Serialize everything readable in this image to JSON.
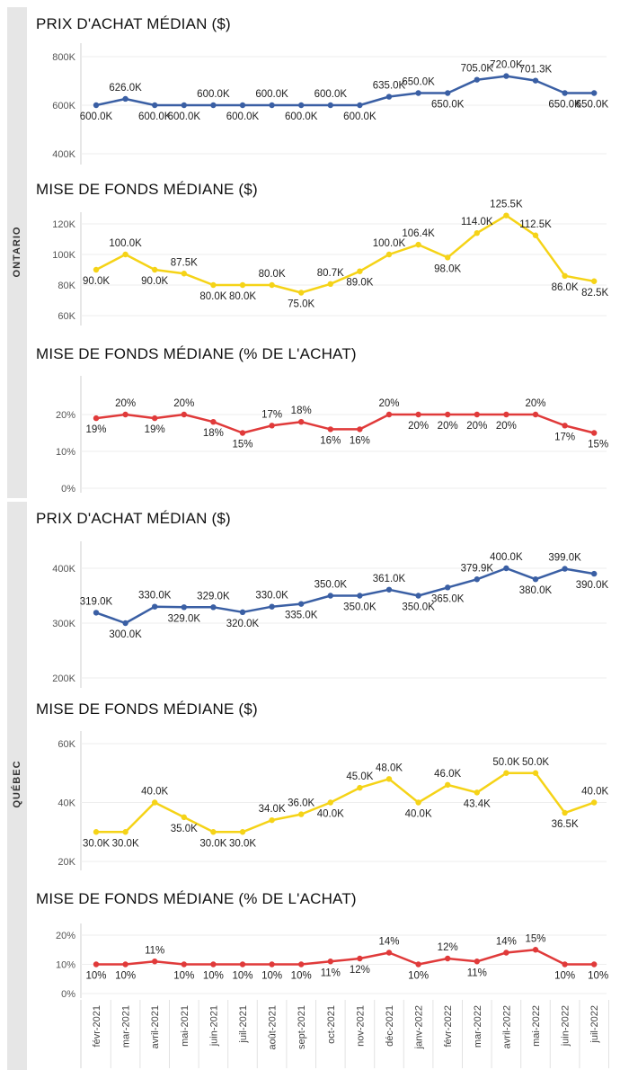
{
  "regions": [
    {
      "label": "ONTARIO"
    },
    {
      "label": "QUÉBEC"
    }
  ],
  "months": [
    "févr-2021",
    "mar-2021",
    "avril-2021",
    "mai-2021",
    "juin-2021",
    "juil-2021",
    "août-2021",
    "sept-2021",
    "oct-2021",
    "nov-2021",
    "déc-2021",
    "janv-2022",
    "févr-2022",
    "mar-2022",
    "avril-2022",
    "mai-2022",
    "juin-2022",
    "juil-2022"
  ],
  "colors": {
    "price": "#3a5fa4",
    "down": "#f5d317",
    "pct": "#e03a3a"
  },
  "chart_data": [
    {
      "type": "line",
      "region": "ONTARIO",
      "title": "PRIX D'ACHAT MÉDIAN ($)",
      "yticks": [
        "400K",
        "600K",
        "800K"
      ],
      "ylim": [
        400,
        800
      ],
      "color": "price",
      "values": [
        600,
        626,
        600,
        600,
        600,
        600,
        600,
        600,
        600,
        600,
        635,
        650,
        650,
        705,
        720,
        701.3,
        650,
        650
      ],
      "labels": [
        "600.0K",
        "626.0K",
        "600.0K",
        "600.0K",
        "600.0K",
        "600.0K",
        "600.0K",
        "600.0K",
        "600.0K",
        "600.0K",
        "635.0K",
        "650.0K",
        "650.0K",
        "705.0K",
        "720.0K",
        "701.3K",
        "650.0K",
        "650.0K"
      ],
      "label_pos": [
        "",
        "a",
        "b",
        "b",
        "a",
        "b",
        "a",
        "b",
        "a",
        "b",
        "a",
        "a",
        "b",
        "a",
        "a",
        "a",
        "b",
        "b"
      ]
    },
    {
      "type": "line",
      "region": "ONTARIO",
      "title": "MISE DE FONDS MÉDIANE ($)",
      "yticks": [
        "60K",
        "80K",
        "100K",
        "120K"
      ],
      "ylim": [
        60,
        125
      ],
      "color": "down",
      "values": [
        90,
        100,
        90,
        87.5,
        80,
        80,
        80,
        75,
        80.7,
        89,
        100,
        106.4,
        98,
        114,
        125.5,
        112.5,
        86,
        82.5
      ],
      "labels": [
        "90.0K",
        "100.0K",
        "90.0K",
        "87.5K",
        "80.0K",
        "80.0K",
        "80.0K",
        "75.0K",
        "80.7K",
        "89.0K",
        "100.0K",
        "106.4K",
        "98.0K",
        "114.0K",
        "125.5K",
        "112.5K",
        "86.0K",
        "82.5K"
      ],
      "label_pos": [
        "b",
        "a",
        "b",
        "a",
        "b",
        "b",
        "a",
        "b",
        "a",
        "b",
        "a",
        "a",
        "b",
        "a",
        "a",
        "a",
        "b",
        "b"
      ]
    },
    {
      "type": "line",
      "region": "ONTARIO",
      "title": "MISE DE FONDS MÉDIANE (% DE L'ACHAT)",
      "yticks": [
        "0%",
        "10%",
        "20%"
      ],
      "ylim": [
        0,
        28
      ],
      "color": "pct",
      "values": [
        19,
        20,
        19,
        20,
        18,
        15,
        17,
        18,
        16,
        16,
        20,
        20,
        20,
        20,
        20,
        20,
        17,
        15
      ],
      "labels": [
        "19%",
        "20%",
        "19%",
        "20%",
        "18%",
        "15%",
        "17%",
        "18%",
        "16%",
        "16%",
        "20%",
        "20%",
        "20%",
        "20%",
        "20%",
        "20%",
        "17%",
        "15%"
      ],
      "label_pos": [
        "b",
        "a",
        "b",
        "a",
        "b",
        "b",
        "a",
        "a",
        "b",
        "b",
        "a",
        "b",
        "b",
        "b",
        "b",
        "a",
        "b",
        "b"
      ]
    },
    {
      "type": "line",
      "region": "QUÉBEC",
      "title": "PRIX D'ACHAT MÉDIAN ($)",
      "yticks": [
        "200K",
        "300K",
        "400K"
      ],
      "ylim": [
        200,
        420
      ],
      "color": "price",
      "values": [
        319,
        300,
        330,
        329,
        329,
        320,
        330,
        335,
        350,
        350,
        361,
        350,
        365,
        379.9,
        400,
        380,
        399,
        390
      ],
      "labels": [
        "319.0K",
        "300.0K",
        "330.0K",
        "329.0K",
        "329.0K",
        "320.0K",
        "330.0K",
        "335.0K",
        "350.0K",
        "350.0K",
        "361.0K",
        "350.0K",
        "365.0K",
        "379.9K",
        "400.0K",
        "380.0K",
        "399.0K",
        "390.0K"
      ],
      "label_pos": [
        "a",
        "b",
        "a",
        "b",
        "a",
        "b",
        "a",
        "b",
        "a",
        "b",
        "a",
        "b",
        "b",
        "a",
        "a",
        "b",
        "a",
        "b"
      ]
    },
    {
      "type": "line",
      "region": "QUÉBEC",
      "title": "MISE DE FONDS MÉDIANE ($)",
      "yticks": [
        "20K",
        "40K",
        "60K"
      ],
      "ylim": [
        20,
        62
      ],
      "color": "down",
      "values": [
        30,
        30,
        40,
        35,
        30,
        30,
        34,
        36,
        40,
        45,
        48,
        40,
        46,
        43.4,
        50,
        50,
        36.5,
        40
      ],
      "labels": [
        "30.0K",
        "30.0K",
        "40.0K",
        "35.0K",
        "30.0K",
        "30.0K",
        "34.0K",
        "36.0K",
        "40.0K",
        "45.0K",
        "48.0K",
        "40.0K",
        "46.0K",
        "43.4K",
        "50.0K",
        "50.0K",
        "36.5K",
        "40.0K"
      ],
      "label_pos": [
        "b",
        "b",
        "a",
        "b",
        "b",
        "b",
        "a",
        "a",
        "b",
        "a",
        "a",
        "b",
        "a",
        "b",
        "a",
        "a",
        "b",
        "a"
      ]
    },
    {
      "type": "line",
      "region": "QUÉBEC",
      "title": "MISE DE FONDS MÉDIANE (% DE L'ACHAT)",
      "yticks": [
        "0%",
        "10%",
        "20%"
      ],
      "ylim": [
        0,
        22
      ],
      "color": "pct",
      "values": [
        10,
        10,
        11,
        10,
        10,
        10,
        10,
        10,
        11,
        12,
        14,
        10,
        12,
        11,
        14,
        15,
        10,
        10
      ],
      "labels": [
        "10%",
        "10%",
        "11%",
        "10%",
        "10%",
        "10%",
        "10%",
        "10%",
        "11%",
        "12%",
        "14%",
        "10%",
        "12%",
        "11%",
        "14%",
        "15%",
        "10%",
        "10%"
      ],
      "label_pos": [
        "b",
        "b",
        "a",
        "b",
        "b",
        "b",
        "b",
        "b",
        "b",
        "b",
        "a",
        "b",
        "a",
        "b",
        "a",
        "a",
        "b",
        "b"
      ]
    }
  ]
}
